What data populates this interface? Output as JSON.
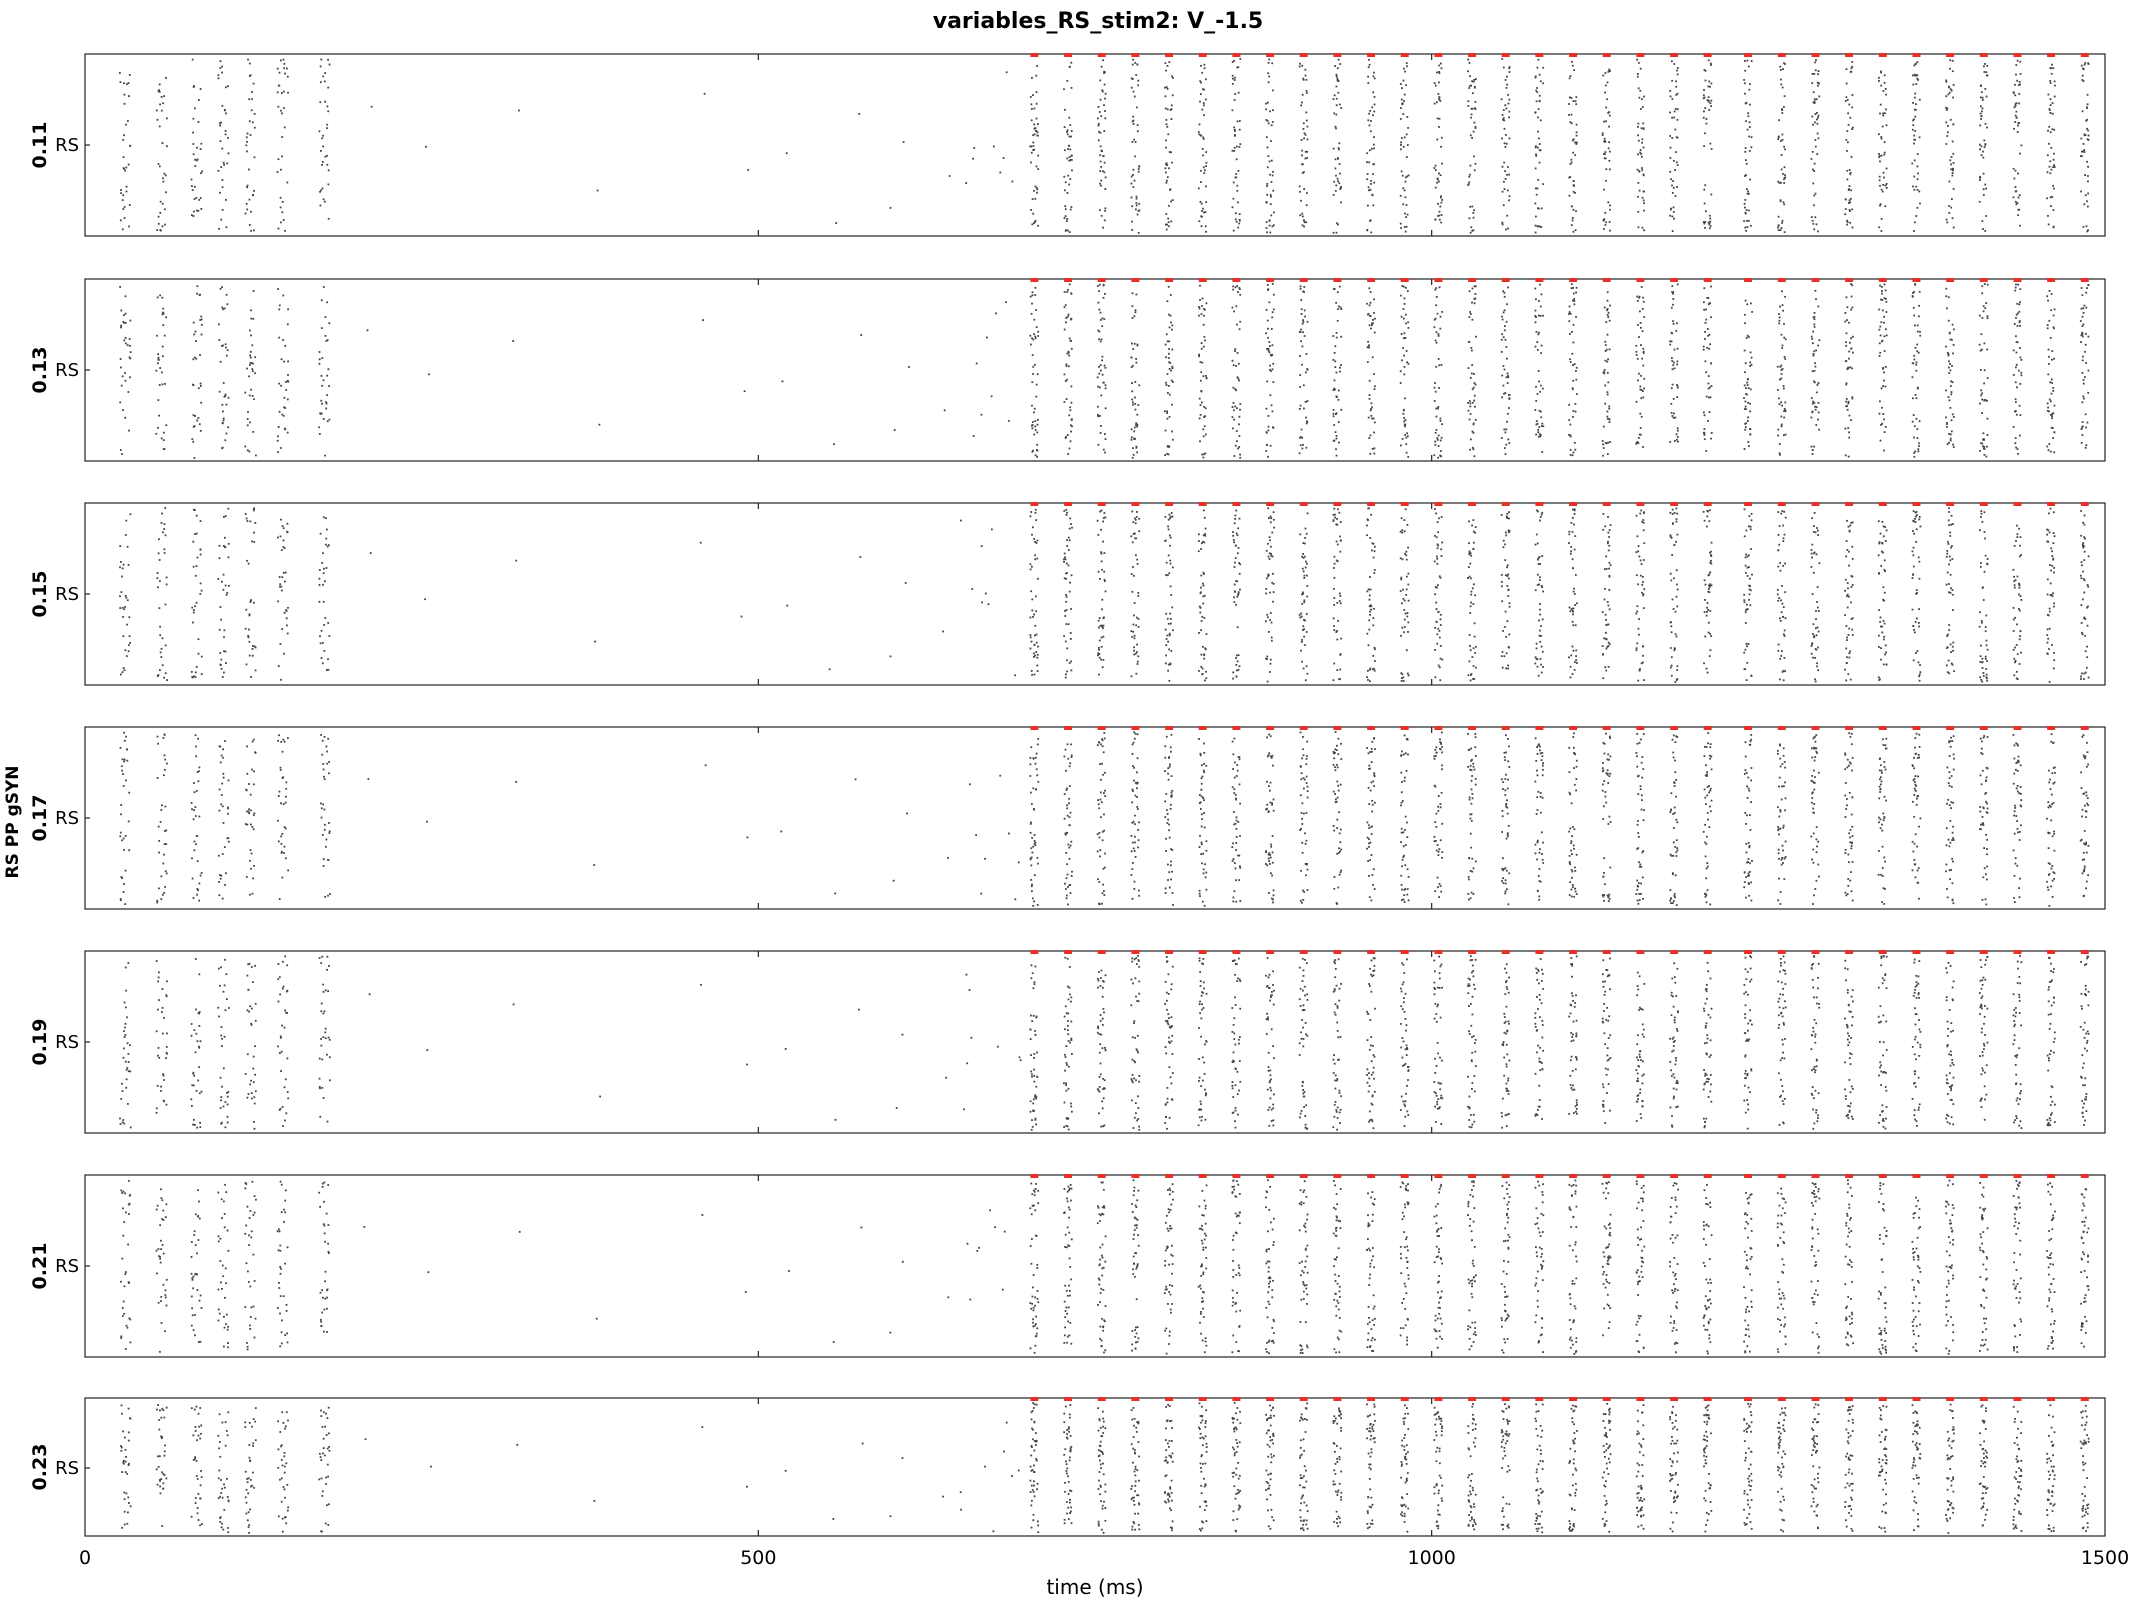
{
  "chart_data": {
    "type": "scatter",
    "title": "variables_RS_stim2: V_-1.5",
    "xlabel": "time (ms)",
    "ylabel": "RS PP gSYN",
    "xlim": [
      0,
      1500
    ],
    "x_ticks": [
      0,
      500,
      1000,
      1500
    ],
    "panel_ytick_label": "RS",
    "series_color": "#444444",
    "marker_color": "#e8302a",
    "panels": [
      {
        "label": "0.11"
      },
      {
        "label": "0.13"
      },
      {
        "label": "0.15"
      },
      {
        "label": "0.17"
      },
      {
        "label": "0.19"
      },
      {
        "label": "0.21"
      },
      {
        "label": "0.23"
      }
    ],
    "early_burst_times": [
      30,
      57,
      83,
      103,
      123,
      147,
      178
    ],
    "stimulus_marker_times": [
      705,
      730,
      755,
      780,
      805,
      830,
      855,
      880,
      905,
      930,
      955,
      980,
      1005,
      1030,
      1055,
      1080,
      1105,
      1130,
      1155,
      1180,
      1205,
      1235,
      1260,
      1285,
      1310,
      1335,
      1360,
      1385,
      1410,
      1435,
      1460,
      1485
    ]
  }
}
